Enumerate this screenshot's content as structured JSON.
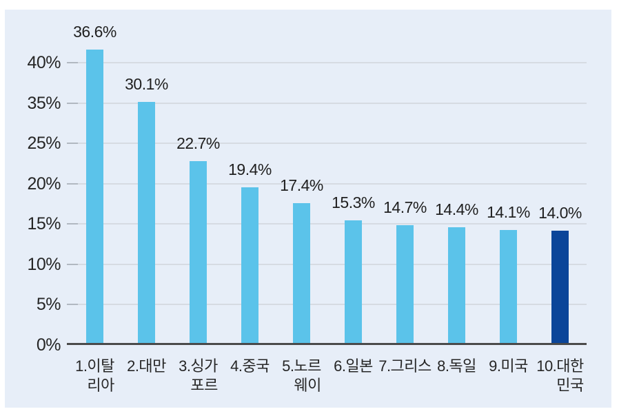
{
  "chart_data": {
    "type": "bar",
    "title": "",
    "xlabel": "",
    "ylabel": "",
    "categories": [
      "1.이탈리아",
      "2.대만",
      "3.싱가포르",
      "4.중국",
      "5.노르웨이",
      "6.일본",
      "7.그리스",
      "8.독일",
      "9.미국",
      "10.대한민국"
    ],
    "category_display_lines": [
      [
        "1.이탈",
        "리아"
      ],
      [
        "2.대만"
      ],
      [
        "3.싱가",
        "포르"
      ],
      [
        "4.중국"
      ],
      [
        "5.노르",
        "웨이"
      ],
      [
        "6.일본"
      ],
      [
        "7.그리스"
      ],
      [
        "8.독일"
      ],
      [
        "9.미국"
      ],
      [
        "10.대한",
        "민국"
      ]
    ],
    "values": [
      36.6,
      30.1,
      22.7,
      19.4,
      17.4,
      15.3,
      14.7,
      14.4,
      14.1,
      14.0
    ],
    "value_labels": [
      "36.6%",
      "30.1%",
      "22.7%",
      "19.4%",
      "17.4%",
      "15.3%",
      "14.7%",
      "14.4%",
      "14.1%",
      "14.0%"
    ],
    "unit": "%",
    "highlight_index": 9,
    "y_axis_labels_as_shown": [
      "40%",
      "35%",
      "25%",
      "20%",
      "15%",
      "10%",
      "5%",
      "0%"
    ],
    "ylim": [
      0,
      43
    ],
    "grid": true,
    "legend": null,
    "colors": {
      "bar": "#5bc3ea",
      "highlight_bar": "#0b4599",
      "panel_background": "#e7eef8",
      "gridline": "#d6dbe2",
      "tick": "#b1b8c1",
      "axis_line": "#4a4a4a",
      "text": "#262626"
    }
  }
}
